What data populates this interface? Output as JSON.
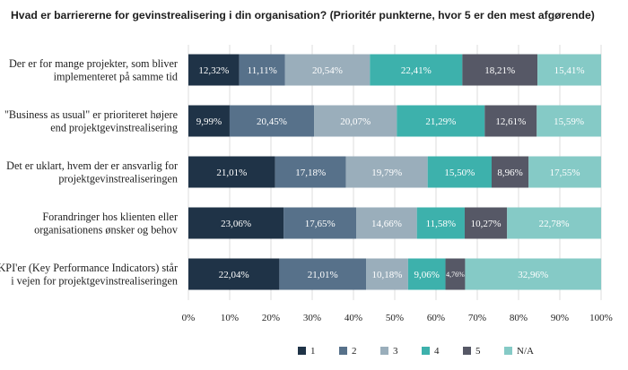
{
  "chart_data": {
    "type": "bar",
    "orientation": "horizontal",
    "stacked": true,
    "title": "Hvad er barriererne for gevinstrealisering i din organisation? (Prioritér punkterne, hvor 5 er den mest afgørende)",
    "categories": [
      [
        "Der er for mange projekter, som bliver",
        "implementeret på samme tid"
      ],
      [
        "\"Business as usual\" er prioriteret højere",
        "end projektgevinstrealisering"
      ],
      [
        "Det er uklart, hvem der er ansvarlig for",
        "projektgevinstrealiseringen"
      ],
      [
        "Forandringer hos klienten eller",
        "organisationens ønsker og behov"
      ],
      [
        "KPI'er (Key Performance Indicators) står",
        "i vejen for projektgevinstrealiseringen"
      ]
    ],
    "series": [
      {
        "name": "1",
        "color": "#1f3347",
        "values": [
          12.32,
          9.99,
          21.01,
          23.06,
          22.04
        ],
        "labels": [
          "12,32%",
          "9,99%",
          "21,01%",
          "23,06%",
          "22,04%"
        ]
      },
      {
        "name": "2",
        "color": "#57718a",
        "values": [
          11.11,
          20.45,
          17.18,
          17.65,
          21.01
        ],
        "labels": [
          "11,11%",
          "20,45%",
          "17,18%",
          "17,65%",
          "21,01%"
        ]
      },
      {
        "name": "3",
        "color": "#9aaebb",
        "values": [
          20.54,
          20.07,
          19.79,
          14.66,
          10.18
        ],
        "labels": [
          "20,54%",
          "20,07%",
          "19,79%",
          "14,66%",
          "10,18%"
        ]
      },
      {
        "name": "4",
        "color": "#3db1ac",
        "values": [
          22.41,
          21.29,
          15.5,
          11.58,
          9.06
        ],
        "labels": [
          "22,41%",
          "21,29%",
          "15,50%",
          "11,58%",
          "9,06%"
        ]
      },
      {
        "name": "5",
        "color": "#565866",
        "values": [
          18.21,
          12.61,
          8.96,
          10.27,
          4.76
        ],
        "labels": [
          "18,21%",
          "12,61%",
          "8,96%",
          "10,27%",
          "4,76%"
        ]
      },
      {
        "name": "N/A",
        "color": "#85cac6",
        "values": [
          15.41,
          15.59,
          17.55,
          22.78,
          32.96
        ],
        "labels": [
          "15,41%",
          "15,59%",
          "17,55%",
          "22,78%",
          "32,96%"
        ]
      }
    ],
    "xlim": [
      0,
      100
    ],
    "xticks": [
      "0%",
      "10%",
      "20%",
      "30%",
      "40%",
      "50%",
      "60%",
      "70%",
      "80%",
      "90%",
      "100%"
    ],
    "grid": true,
    "legend_position": "bottom"
  }
}
